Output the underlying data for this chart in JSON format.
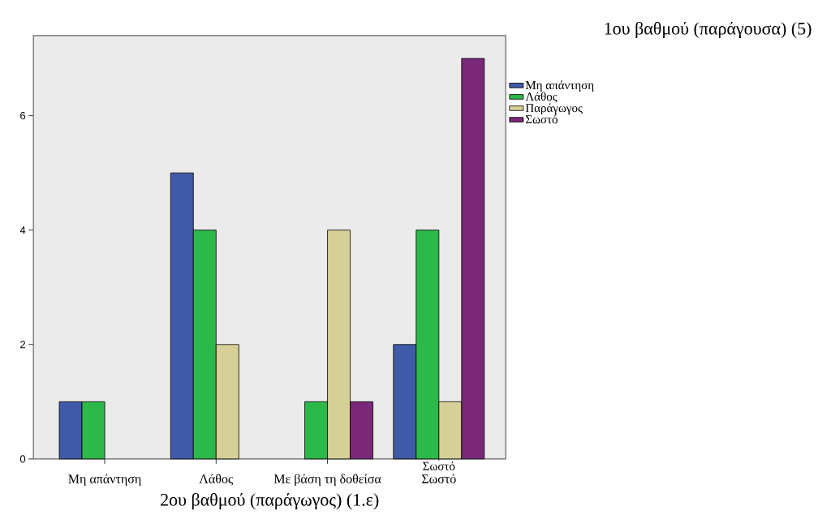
{
  "chart_data": {
    "type": "bar",
    "xlabel": "2ου βαθμού (παράγωγος) (1.ε)",
    "legend_title": "1ου βαθμού (παράγουσα) (5)",
    "categories": [
      "Μη απάντηση",
      "Λάθος",
      "Με βάση τη δοθείσα",
      "Σωστό"
    ],
    "series": [
      {
        "name": "Μη απάντηση",
        "color": "#3f5aa8",
        "values": [
          1,
          5,
          null,
          2
        ]
      },
      {
        "name": "Λάθος",
        "color": "#2db84a",
        "values": [
          1,
          4,
          1,
          4
        ]
      },
      {
        "name": "Παράγωγος",
        "color": "#d6cf97",
        "values": [
          null,
          2,
          4,
          1
        ]
      },
      {
        "name": "Σωστό",
        "color": "#7a2877",
        "values": [
          null,
          null,
          1,
          7
        ]
      }
    ],
    "ylim": [
      0,
      7.4
    ],
    "yticks": [
      0,
      2,
      4,
      6
    ],
    "grid": false,
    "legend": "right",
    "annotations": [
      "Σωστό"
    ]
  }
}
